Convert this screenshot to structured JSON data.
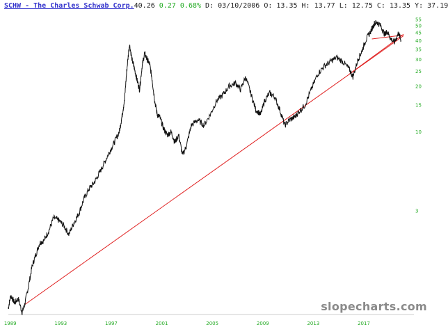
{
  "header": {
    "ticker_link": "SCHW - The Charles Schwab Corp.",
    "last": "40.26",
    "change": "0.27",
    "change_pct": "0.68%",
    "ohlc": "D: 03/10/2006 O: 13.35 H: 13.77 L: 12.75 C: 13.35 Y: 37.19"
  },
  "watermark": "slopecharts.com",
  "chart_data": {
    "type": "line",
    "scale": "log",
    "y_ticks": [
      3,
      10,
      15,
      20,
      25,
      30,
      35,
      40,
      45,
      50,
      55
    ],
    "x_ticks": [
      "1989",
      "1993",
      "1997",
      "2001",
      "2005",
      "2009",
      "2013",
      "2017"
    ],
    "xlim": [
      1988.9,
      2020.3
    ],
    "ylim": [
      0.62,
      60
    ],
    "grid": false,
    "colors": {
      "price": "#111111",
      "trendline": "#e02020",
      "ticks": "#22aa22"
    },
    "series": [
      {
        "x": [
          1989.0,
          1989.2,
          1989.5,
          1989.8,
          1990.1,
          1990.3,
          1990.6,
          1990.9,
          1991.2,
          1991.5,
          1991.8,
          1992.2,
          1992.6,
          1993.0,
          1993.4,
          1993.8,
          1994.2,
          1994.6,
          1995.0,
          1995.4,
          1995.8,
          1996.2,
          1996.6,
          1997.0,
          1997.4,
          1997.8,
          1998.0,
          1998.2,
          1998.4,
          1998.6,
          1998.8,
          1999.0,
          1999.2,
          1999.4,
          1999.6,
          1999.8,
          2000.0,
          2000.2,
          2000.4,
          2000.6,
          2000.8,
          2001.0,
          2001.3,
          2001.6,
          2001.9,
          2002.2,
          2002.5,
          2002.8,
          2003.1,
          2003.5,
          2004.0,
          2004.5,
          2005.0,
          2005.5,
          2006.0,
          2006.5,
          2007.0,
          2007.4,
          2007.8,
          2008.2,
          2008.6,
          2009.0,
          2009.3,
          2009.7,
          2010.1,
          2010.5,
          2010.9,
          2011.3,
          2011.7,
          2012.0,
          2012.5,
          2013.0,
          2013.5,
          2014.0,
          2014.5,
          2015.0,
          2015.5,
          2016.0,
          2016.3,
          2016.7,
          2017.0,
          2017.3,
          2017.7,
          2018.0,
          2018.2,
          2018.5,
          2018.8,
          2019.0,
          2019.3,
          2019.6,
          2019.9,
          2020.1
        ],
        "y": [
          0.68,
          0.83,
          0.74,
          0.79,
          0.64,
          0.72,
          0.95,
          1.3,
          1.55,
          1.85,
          1.9,
          2.2,
          2.7,
          2.6,
          2.4,
          2.1,
          2.5,
          2.9,
          3.6,
          4.2,
          4.6,
          5.3,
          6.2,
          7.3,
          8.5,
          10.0,
          12.5,
          16.0,
          26.0,
          38.0,
          30.0,
          26.0,
          22.0,
          19.0,
          27.0,
          33.0,
          30.0,
          28.0,
          22.0,
          16.0,
          13.0,
          12.5,
          10.5,
          9.5,
          10.0,
          8.5,
          9.5,
          7.0,
          8.0,
          11.0,
          12.0,
          11.0,
          13.0,
          16.0,
          17.5,
          20.0,
          21.0,
          19.0,
          23.0,
          18.0,
          14.0,
          13.0,
          16.0,
          18.0,
          17.0,
          14.0,
          11.0,
          12.0,
          12.5,
          13.5,
          15.0,
          19.0,
          24.0,
          27.0,
          29.0,
          31.0,
          29.0,
          26.0,
          23.0,
          30.0,
          34.0,
          40.0,
          46.0,
          52.0,
          53.0,
          50.0,
          44.0,
          46.0,
          41.0,
          39.0,
          45.0,
          40.3
        ]
      }
    ],
    "trendlines": [
      {
        "x": [
          1990.3,
          2020.3
        ],
        "y": [
          0.72,
          43.0
        ]
      },
      {
        "x": [
          2016.0,
          2020.3
        ],
        "y": [
          24.0,
          44.0
        ]
      },
      {
        "x": [
          2017.8,
          2020.3
        ],
        "y": [
          41.0,
          43.5
        ]
      }
    ]
  }
}
